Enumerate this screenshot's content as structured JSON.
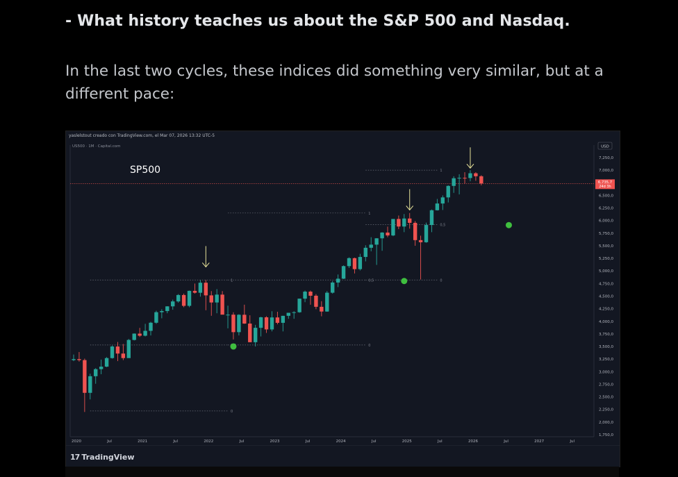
{
  "heading": {
    "prefix": "- ",
    "bold": "What history teaches us about the S&P 500 and Nasdaq."
  },
  "paragraph": "In the last two cycles, these indices did something very similar, but at a different pace:",
  "chart_card": {
    "credit": "yaslelstout creado con TradingView.com, el Mar 07, 2026 13:32 UTC-5",
    "symbol": "US500 · 1M · Capital.com",
    "currency": "USD",
    "brand": "TradingView",
    "brand_mark": "17"
  },
  "chart_data": {
    "type": "candlestick",
    "title": "SP500",
    "ylim": [
      1600,
      7450
    ],
    "ytick_values": [
      1750,
      2000,
      2250,
      2500,
      2750,
      3000,
      3250,
      3500,
      3750,
      4000,
      4250,
      4500,
      4750,
      5000,
      5250,
      5500,
      5750,
      6000,
      6250,
      6500,
      7000,
      7250
    ],
    "ytick_labels": [
      "1,750,0",
      "2,000,0",
      "2,250,0",
      "2,500,0",
      "2,750,0",
      "3,000,0",
      "3,250,0",
      "3,500,0",
      "3,750,0",
      "4,000,0",
      "4,250,0",
      "4,500,0",
      "4,750,0",
      "5,000,0",
      "5,250,0",
      "5,500,0",
      "5,750,0",
      "6,000,0",
      "6,250,0",
      "6,500,0",
      "7,000,0",
      "7,250,0"
    ],
    "xtick_labels": [
      "2020",
      "Jul",
      "2021",
      "Jul",
      "2022",
      "Jul",
      "2023",
      "Jul",
      "2024",
      "Jul",
      "2025",
      "Jul",
      "2026",
      "Jul",
      "2027",
      "Jul"
    ],
    "xtick_month_index": [
      0,
      6,
      12,
      18,
      24,
      30,
      36,
      42,
      48,
      54,
      60,
      66,
      72,
      78,
      84,
      90
    ],
    "last_price_label": "6,735,7",
    "countdown_label": "24d 3h",
    "last_price": 6735.7,
    "candles": [
      {
        "m": 0,
        "o": 3230,
        "h": 3340,
        "l": 3210,
        "c": 3250
      },
      {
        "m": 1,
        "o": 3250,
        "h": 3390,
        "l": 3200,
        "c": 3230
      },
      {
        "m": 2,
        "o": 3230,
        "h": 3260,
        "l": 2200,
        "c": 2580
      },
      {
        "m": 3,
        "o": 2580,
        "h": 2960,
        "l": 2450,
        "c": 2910
      },
      {
        "m": 4,
        "o": 2910,
        "h": 3070,
        "l": 2760,
        "c": 3050
      },
      {
        "m": 5,
        "o": 3050,
        "h": 3240,
        "l": 2950,
        "c": 3100
      },
      {
        "m": 6,
        "o": 3100,
        "h": 3290,
        "l": 3090,
        "c": 3270
      },
      {
        "m": 7,
        "o": 3270,
        "h": 3520,
        "l": 3260,
        "c": 3500
      },
      {
        "m": 8,
        "o": 3500,
        "h": 3590,
        "l": 3210,
        "c": 3360
      },
      {
        "m": 9,
        "o": 3360,
        "h": 3550,
        "l": 3230,
        "c": 3270
      },
      {
        "m": 10,
        "o": 3270,
        "h": 3650,
        "l": 3280,
        "c": 3630
      },
      {
        "m": 11,
        "o": 3630,
        "h": 3760,
        "l": 3620,
        "c": 3756
      },
      {
        "m": 12,
        "o": 3756,
        "h": 3870,
        "l": 3690,
        "c": 3714
      },
      {
        "m": 13,
        "o": 3714,
        "h": 3950,
        "l": 3700,
        "c": 3811
      },
      {
        "m": 14,
        "o": 3811,
        "h": 3990,
        "l": 3720,
        "c": 3972
      },
      {
        "m": 15,
        "o": 3972,
        "h": 4210,
        "l": 3950,
        "c": 4181
      },
      {
        "m": 16,
        "o": 4181,
        "h": 4240,
        "l": 4060,
        "c": 4204
      },
      {
        "m": 17,
        "o": 4204,
        "h": 4300,
        "l": 4160,
        "c": 4297
      },
      {
        "m": 18,
        "o": 4297,
        "h": 4430,
        "l": 4230,
        "c": 4395
      },
      {
        "m": 19,
        "o": 4395,
        "h": 4540,
        "l": 4370,
        "c": 4522
      },
      {
        "m": 20,
        "o": 4522,
        "h": 4550,
        "l": 4280,
        "c": 4307
      },
      {
        "m": 21,
        "o": 4307,
        "h": 4610,
        "l": 4280,
        "c": 4605
      },
      {
        "m": 22,
        "o": 4605,
        "h": 4750,
        "l": 4550,
        "c": 4567
      },
      {
        "m": 23,
        "o": 4567,
        "h": 4820,
        "l": 4490,
        "c": 4766
      },
      {
        "m": 24,
        "o": 4766,
        "h": 4820,
        "l": 4220,
        "c": 4515
      },
      {
        "m": 25,
        "o": 4515,
        "h": 4600,
        "l": 4110,
        "c": 4374
      },
      {
        "m": 26,
        "o": 4374,
        "h": 4640,
        "l": 4160,
        "c": 4530
      },
      {
        "m": 27,
        "o": 4530,
        "h": 4600,
        "l": 4160,
        "c": 4132
      },
      {
        "m": 28,
        "o": 4132,
        "h": 4310,
        "l": 3860,
        "c": 4132
      },
      {
        "m": 29,
        "o": 4132,
        "h": 4180,
        "l": 3640,
        "c": 3785
      },
      {
        "m": 30,
        "o": 3785,
        "h": 4140,
        "l": 3720,
        "c": 4130
      },
      {
        "m": 31,
        "o": 4130,
        "h": 4330,
        "l": 3950,
        "c": 3955
      },
      {
        "m": 32,
        "o": 3955,
        "h": 4120,
        "l": 3590,
        "c": 3585
      },
      {
        "m": 33,
        "o": 3585,
        "h": 3930,
        "l": 3500,
        "c": 3871
      },
      {
        "m": 34,
        "o": 3871,
        "h": 4090,
        "l": 3700,
        "c": 4080
      },
      {
        "m": 35,
        "o": 4080,
        "h": 4100,
        "l": 3770,
        "c": 3839
      },
      {
        "m": 36,
        "o": 3839,
        "h": 4200,
        "l": 3800,
        "c": 4077
      },
      {
        "m": 37,
        "o": 4077,
        "h": 4190,
        "l": 3940,
        "c": 3970
      },
      {
        "m": 38,
        "o": 3970,
        "h": 4110,
        "l": 3800,
        "c": 4109
      },
      {
        "m": 39,
        "o": 4109,
        "h": 4170,
        "l": 4050,
        "c": 4169
      },
      {
        "m": 40,
        "o": 4169,
        "h": 4200,
        "l": 4050,
        "c": 4180
      },
      {
        "m": 41,
        "o": 4180,
        "h": 4450,
        "l": 4170,
        "c": 4450
      },
      {
        "m": 42,
        "o": 4450,
        "h": 4610,
        "l": 4380,
        "c": 4589
      },
      {
        "m": 43,
        "o": 4589,
        "h": 4610,
        "l": 4330,
        "c": 4508
      },
      {
        "m": 44,
        "o": 4508,
        "h": 4540,
        "l": 4240,
        "c": 4288
      },
      {
        "m": 45,
        "o": 4288,
        "h": 4400,
        "l": 4100,
        "c": 4194
      },
      {
        "m": 46,
        "o": 4194,
        "h": 4600,
        "l": 4190,
        "c": 4568
      },
      {
        "m": 47,
        "o": 4568,
        "h": 4800,
        "l": 4550,
        "c": 4770
      },
      {
        "m": 48,
        "o": 4770,
        "h": 4930,
        "l": 4680,
        "c": 4846
      },
      {
        "m": 49,
        "o": 4846,
        "h": 5110,
        "l": 4840,
        "c": 5096
      },
      {
        "m": 50,
        "o": 5096,
        "h": 5270,
        "l": 5060,
        "c": 5254
      },
      {
        "m": 51,
        "o": 5254,
        "h": 5265,
        "l": 4950,
        "c": 5036
      },
      {
        "m": 52,
        "o": 5036,
        "h": 5340,
        "l": 5010,
        "c": 5278
      },
      {
        "m": 53,
        "o": 5278,
        "h": 5510,
        "l": 5190,
        "c": 5460
      },
      {
        "m": 54,
        "o": 5460,
        "h": 5670,
        "l": 5390,
        "c": 5522
      },
      {
        "m": 55,
        "o": 5522,
        "h": 5650,
        "l": 5120,
        "c": 5648
      },
      {
        "m": 56,
        "o": 5648,
        "h": 5770,
        "l": 5400,
        "c": 5762
      },
      {
        "m": 57,
        "o": 5762,
        "h": 5880,
        "l": 5670,
        "c": 5705
      },
      {
        "m": 58,
        "o": 5705,
        "h": 6020,
        "l": 5690,
        "c": 6032
      },
      {
        "m": 59,
        "o": 6032,
        "h": 6100,
        "l": 5830,
        "c": 5882
      },
      {
        "m": 60,
        "o": 5882,
        "h": 6130,
        "l": 5770,
        "c": 6041
      },
      {
        "m": 61,
        "o": 6041,
        "h": 6150,
        "l": 5840,
        "c": 5955
      },
      {
        "m": 62,
        "o": 5955,
        "h": 5990,
        "l": 5500,
        "c": 5612
      },
      {
        "m": 63,
        "o": 5612,
        "h": 5700,
        "l": 4830,
        "c": 5570
      },
      {
        "m": 64,
        "o": 5570,
        "h": 5960,
        "l": 5560,
        "c": 5912
      },
      {
        "m": 65,
        "o": 5912,
        "h": 6220,
        "l": 5770,
        "c": 6205
      },
      {
        "m": 66,
        "o": 6205,
        "h": 6430,
        "l": 6200,
        "c": 6339
      },
      {
        "m": 67,
        "o": 6339,
        "h": 6500,
        "l": 6210,
        "c": 6460
      },
      {
        "m": 68,
        "o": 6460,
        "h": 6700,
        "l": 6360,
        "c": 6688
      },
      {
        "m": 69,
        "o": 6688,
        "h": 6880,
        "l": 6550,
        "c": 6840
      },
      {
        "m": 70,
        "o": 6840,
        "h": 6920,
        "l": 6520,
        "c": 6849
      },
      {
        "m": 71,
        "o": 6849,
        "h": 6960,
        "l": 6730,
        "c": 6845
      },
      {
        "m": 72,
        "o": 6845,
        "h": 7000,
        "l": 6780,
        "c": 6939
      },
      {
        "m": 73,
        "o": 6939,
        "h": 6960,
        "l": 6790,
        "c": 6880
      },
      {
        "m": 74,
        "o": 6880,
        "h": 6900,
        "l": 6700,
        "c": 6735.7
      }
    ],
    "fib_levels": [
      {
        "label": "1",
        "value": 4820,
        "m_start": 3,
        "m_end": 28
      },
      {
        "label": "0,5",
        "value": 3530,
        "m_start": 3,
        "m_end": 28
      },
      {
        "label": "0",
        "value": 2220,
        "m_start": 3,
        "m_end": 28
      },
      {
        "label": "1",
        "value": 6150,
        "m_start": 28,
        "m_end": 53
      },
      {
        "label": "0,5",
        "value": 4820,
        "m_start": 28,
        "m_end": 53
      },
      {
        "label": "0",
        "value": 3530,
        "m_start": 28,
        "m_end": 53
      },
      {
        "label": "1",
        "value": 7000,
        "m_start": 53,
        "m_end": 66
      },
      {
        "label": "0,5",
        "value": 5920,
        "m_start": 53,
        "m_end": 66
      },
      {
        "label": "0",
        "value": 4820,
        "m_start": 53,
        "m_end": 66
      }
    ],
    "markers": [
      {
        "m": 29,
        "value": 3500
      },
      {
        "m": 60,
        "value": 4800
      },
      {
        "m": 79,
        "value": 5910
      }
    ],
    "arrows": [
      {
        "m": 24,
        "value": 5080
      },
      {
        "m": 61,
        "value": 6210
      },
      {
        "m": 72,
        "value": 7040
      }
    ],
    "colors": {
      "up": "#26a69a",
      "down": "#ef5350",
      "marker": "#3fbf3f",
      "arrow": "#e8e39a",
      "bg": "#131722",
      "last_price_bg": "#ef5350"
    }
  }
}
